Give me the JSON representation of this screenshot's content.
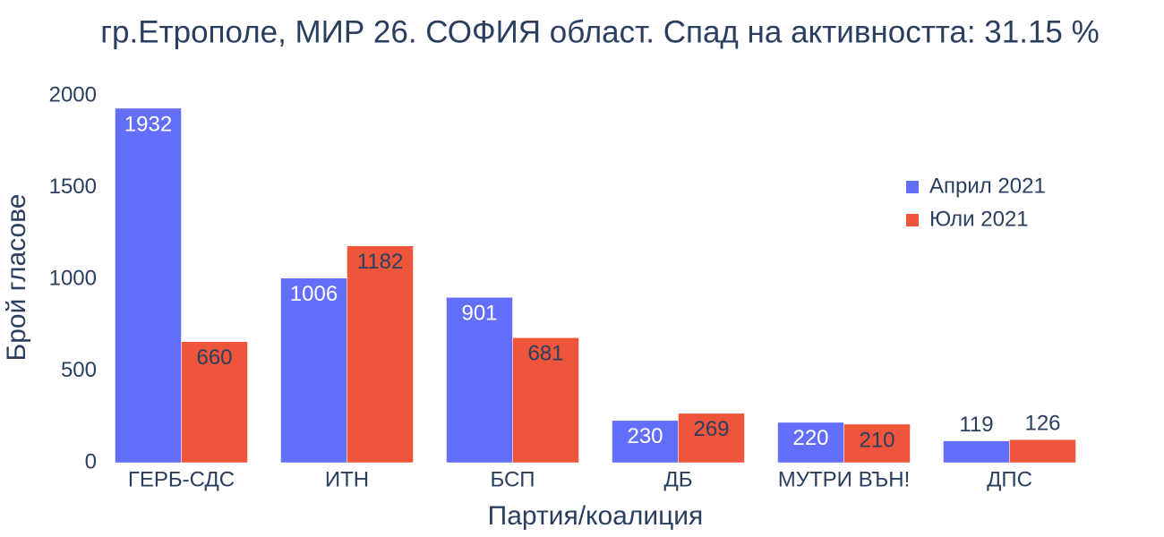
{
  "chart_data": {
    "type": "bar",
    "title": "гр.Етрополе, МИР 26. СОФИЯ област. Спад на активността: 31.15 %",
    "x_label": "Партия/коалиция",
    "y_label": "Брой гласове",
    "categories": [
      "ГЕРБ-СДС",
      "ИТН",
      "БСП",
      "ДБ",
      "МУТРИ ВЪН!",
      "ДПС"
    ],
    "series": [
      {
        "name": "Април 2021",
        "color": "#636efa",
        "values": [
          1932,
          1006,
          901,
          230,
          220,
          119
        ]
      },
      {
        "name": "Юли 2021",
        "color": "#EF553B",
        "values": [
          660,
          1182,
          681,
          269,
          210,
          126
        ]
      }
    ],
    "ylim": [
      0,
      2000
    ],
    "yticks": [
      0,
      500,
      1000,
      1500,
      2000
    ],
    "legend": "upper right"
  }
}
